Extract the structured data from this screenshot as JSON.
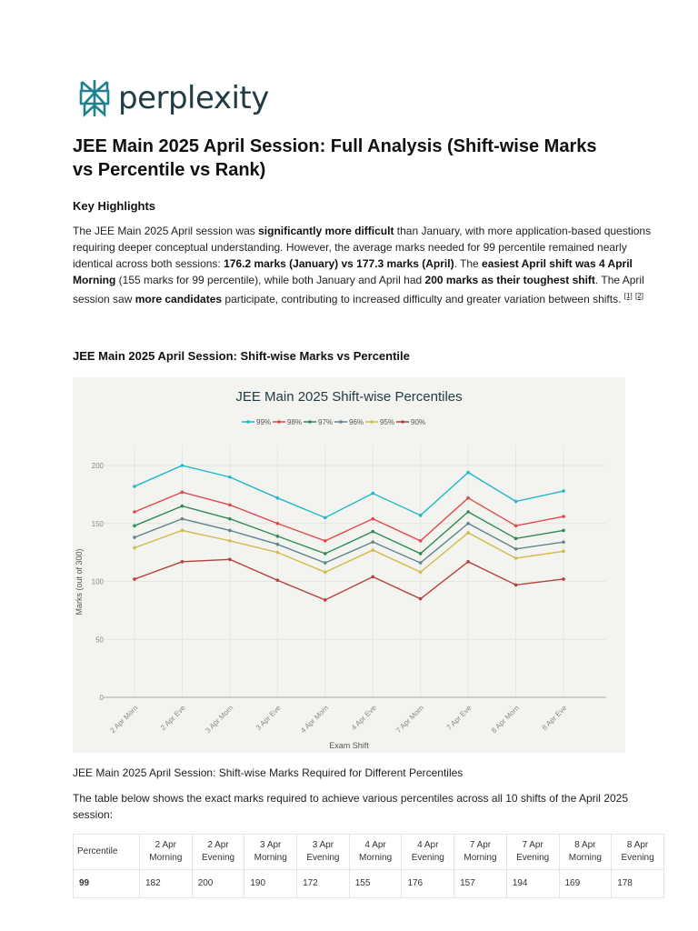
{
  "brand": {
    "name": "perplexity",
    "color": "#20808d"
  },
  "title": "JEE Main 2025 April Session: Full Analysis (Shift-wise Marks vs Percentile vs Rank)",
  "key_highlights": {
    "heading": "Key Highlights",
    "segments": [
      {
        "text": "The JEE Main 2025 April session was ",
        "bold": false
      },
      {
        "text": "significantly more difficult",
        "bold": true
      },
      {
        "text": " than January, with more application-based questions requiring deeper conceptual understanding. However, the average marks needed for 99 percentile remained nearly identical across both sessions: ",
        "bold": false
      },
      {
        "text": "176.2 marks (January) vs 177.3 marks (April)",
        "bold": true
      },
      {
        "text": ". The ",
        "bold": false
      },
      {
        "text": "easiest April shift was 4 April Morning",
        "bold": true
      },
      {
        "text": " (155 marks for 99 percentile), while both January and April had ",
        "bold": false
      },
      {
        "text": "200 marks as their toughest shift",
        "bold": true
      },
      {
        "text": ". The April session saw ",
        "bold": false
      },
      {
        "text": "more candidates",
        "bold": true
      },
      {
        "text": " participate, contributing to increased difficulty and greater variation between shifts. ",
        "bold": false
      }
    ],
    "citations": [
      "[1]",
      "[2]"
    ]
  },
  "chart_section_heading": "JEE Main 2025 April Session: Shift-wise Marks vs Percentile",
  "chart_data": {
    "type": "line",
    "title": "JEE Main 2025 Shift-wise Percentiles",
    "xlabel": "Exam Shift",
    "ylabel": "Marks (out of 300)",
    "ylim": [
      0,
      220
    ],
    "yticks": [
      0,
      50,
      100,
      150,
      200
    ],
    "grid": true,
    "legend": "top-center",
    "categories": [
      "2 Apr Morn",
      "2 Apr Eve",
      "3 Apr Morn",
      "3 Apr Eve",
      "4 Apr Morn",
      "4 Apr Eve",
      "7 Apr Morn",
      "7 Apr Eve",
      "8 Apr Morn",
      "8 Apr Eve"
    ],
    "series": [
      {
        "name": "99%",
        "color": "#1fb8cd",
        "values": [
          182,
          200,
          190,
          172,
          155,
          176,
          157,
          194,
          169,
          178
        ]
      },
      {
        "name": "98%",
        "color": "#e0484d",
        "values": [
          160,
          177,
          166,
          150,
          135,
          154,
          135,
          172,
          148,
          156
        ]
      },
      {
        "name": "97%",
        "color": "#2e8b57",
        "values": [
          148,
          165,
          154,
          139,
          124,
          143,
          124,
          160,
          137,
          144
        ]
      },
      {
        "name": "96%",
        "color": "#5d878f",
        "values": [
          138,
          154,
          144,
          132,
          116,
          134,
          116,
          150,
          128,
          134
        ]
      },
      {
        "name": "95%",
        "color": "#d2ba4c",
        "values": [
          129,
          144,
          135,
          125,
          108,
          127,
          108,
          142,
          120,
          126
        ]
      },
      {
        "name": "90%",
        "color": "#b4413c",
        "values": [
          102,
          117,
          119,
          101,
          84,
          104,
          85,
          117,
          97,
          102
        ]
      }
    ]
  },
  "chart_caption": "JEE Main 2025 April Session: Shift-wise Marks Required for Different Percentiles",
  "table_intro": "The table below shows the exact marks required to achieve various percentiles across all 10 shifts of the April 2025 session:",
  "table": {
    "headers": [
      [
        "Percentile",
        ""
      ],
      [
        "2 Apr",
        "Morning"
      ],
      [
        "2 Apr",
        "Evening"
      ],
      [
        "3 Apr",
        "Morning"
      ],
      [
        "3 Apr",
        "Evening"
      ],
      [
        "4 Apr",
        "Morning"
      ],
      [
        "4 Apr",
        "Evening"
      ],
      [
        "7 Apr",
        "Morning"
      ],
      [
        "7 Apr",
        "Evening"
      ],
      [
        "8 Apr",
        "Morning"
      ],
      [
        "8 Apr",
        "Evening"
      ]
    ],
    "rows": [
      [
        "99",
        "182",
        "200",
        "190",
        "172",
        "155",
        "176",
        "157",
        "194",
        "169",
        "178"
      ]
    ]
  }
}
